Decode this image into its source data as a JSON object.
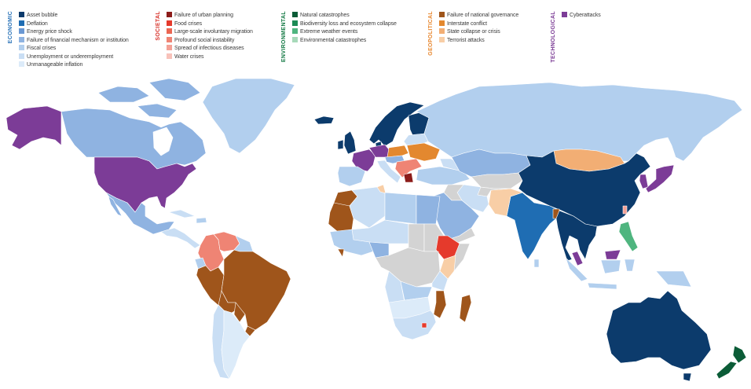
{
  "legend": [
    {
      "title": "ECONOMIC",
      "title_color": "#2a73b8",
      "items": [
        {
          "label": "Asset bubble",
          "color": "#0c3b6c"
        },
        {
          "label": "Deflation",
          "color": "#1f6db3"
        },
        {
          "label": "Energy price shock",
          "color": "#6a98d3"
        },
        {
          "label": "Failure of financial mechanism or institution",
          "color": "#8fb3e1"
        },
        {
          "label": "Fiscal crises",
          "color": "#b2cfee"
        },
        {
          "label": "Unemployment or underemployment",
          "color": "#c9def4"
        },
        {
          "label": "Unmanageable inflation",
          "color": "#dcebf9"
        }
      ]
    },
    {
      "title": "SOCIETAL",
      "title_color": "#d8322a",
      "items": [
        {
          "label": "Failure of urban planning",
          "color": "#8c1c1a"
        },
        {
          "label": "Food crises",
          "color": "#e53a2c"
        },
        {
          "label": "Large-scale involuntary migration",
          "color": "#eb6652"
        },
        {
          "label": "Profound social instability",
          "color": "#ef8474"
        },
        {
          "label": "Spread of infectious diseases",
          "color": "#f4a196"
        },
        {
          "label": "Water crises",
          "color": "#f8c2ba"
        }
      ]
    },
    {
      "title": "ENVIRONMENTAL",
      "title_color": "#157a45",
      "items": [
        {
          "label": "Natural catastrophes",
          "color": "#0b5c37"
        },
        {
          "label": "Biodiversity loss and ecosystem collapse",
          "color": "#1b8a55"
        },
        {
          "label": "Extreme weather events",
          "color": "#4fb57f"
        },
        {
          "label": "Environmental catastrophes",
          "color": "#a7d9b9"
        }
      ]
    },
    {
      "title": "GEOPOLITICAL",
      "title_color": "#e8872e",
      "items": [
        {
          "label": "Failure of national governance",
          "color": "#9f551b"
        },
        {
          "label": "Interstate conflict",
          "color": "#e3882f"
        },
        {
          "label": "State collapse or crisis",
          "color": "#f2ae74"
        },
        {
          "label": "Terrorist attacks",
          "color": "#f8cea6"
        }
      ]
    },
    {
      "title": "TECHNOLOGICAL",
      "title_color": "#7b3b95",
      "items": [
        {
          "label": "Cyberattacks",
          "color": "#7c3c97"
        }
      ]
    }
  ],
  "map": {
    "nodata_color": "#d3d3d3",
    "water_color": "#ffffff",
    "fills": {
      "greenland": [
        0,
        4
      ],
      "canada": [
        0,
        3
      ],
      "usa": [
        4,
        0
      ],
      "mexico": [
        0,
        3
      ],
      "central-america": [
        0,
        5
      ],
      "cuba": [
        0,
        5
      ],
      "hispaniola": [
        0,
        4
      ],
      "colombia": [
        1,
        3
      ],
      "venezuela": [
        1,
        3
      ],
      "guianas": [
        0,
        4
      ],
      "ecuador": [
        0,
        4
      ],
      "peru": [
        3,
        0
      ],
      "brazil": [
        3,
        0
      ],
      "bolivia": [
        3,
        0
      ],
      "paraguay": [
        3,
        0
      ],
      "uruguay": [
        3,
        0
      ],
      "chile": [
        0,
        5
      ],
      "argentina": [
        0,
        6
      ],
      "iceland": [
        0,
        0
      ],
      "uk": [
        0,
        0
      ],
      "ireland": [
        0,
        0
      ],
      "scandinavia": [
        0,
        0
      ],
      "finland": [
        0,
        0
      ],
      "denmark": [
        0,
        0
      ],
      "baltics-belarus": [
        0,
        5
      ],
      "france": [
        4,
        0
      ],
      "germany-benelux": [
        4,
        0
      ],
      "iberia": [
        0,
        4
      ],
      "italy": [
        0,
        5
      ],
      "poland": [
        3,
        1
      ],
      "central-europe": [
        0,
        3
      ],
      "ukraine": [
        3,
        1
      ],
      "balkans": [
        1,
        3
      ],
      "greece": [
        1,
        0
      ],
      "turkey": [
        0,
        4
      ],
      "caucasus": [
        0,
        5
      ],
      "russia": [
        0,
        4
      ],
      "kazakhstan": [
        0,
        3
      ],
      "central-asia": null,
      "mongolia": [
        3,
        2
      ],
      "china": [
        0,
        0
      ],
      "korea": [
        4,
        0
      ],
      "japan": [
        4,
        0
      ],
      "taiwan": [
        1,
        4
      ],
      "philippines": [
        2,
        2
      ],
      "india": [
        0,
        1
      ],
      "sri-lanka": [
        0,
        4
      ],
      "pakistan": [
        3,
        3
      ],
      "afghanistan": null,
      "iran": [
        0,
        5
      ],
      "iraq": null,
      "saudi-arabia": [
        0,
        3
      ],
      "yemen": null,
      "bangladesh": [
        3,
        0
      ],
      "southeast-asia": [
        0,
        0
      ],
      "malaysia": [
        4,
        0
      ],
      "indonesia": [
        0,
        4
      ],
      "papua-new-guinea": [
        0,
        4
      ],
      "australia": [
        0,
        0
      ],
      "new-zealand": [
        2,
        0
      ],
      "morocco": [
        3,
        0
      ],
      "mauritania": [
        3,
        0
      ],
      "algeria": [
        0,
        5
      ],
      "tunisia": [
        3,
        3
      ],
      "libya": [
        0,
        4
      ],
      "egypt": [
        0,
        3
      ],
      "sahel": [
        0,
        5
      ],
      "chad": null,
      "sudan": null,
      "ethiopia": [
        1,
        1
      ],
      "somalia": null,
      "kenya": [
        3,
        3
      ],
      "west-africa": [
        0,
        4
      ],
      "sierra-leone": [
        3,
        0
      ],
      "nigeria": [
        0,
        3
      ],
      "central-africa": null,
      "tanzania": [
        0,
        5
      ],
      "angola": [
        0,
        5
      ],
      "zambia": [
        0,
        4
      ],
      "mozambique": [
        3,
        0
      ],
      "namibia-botswana": [
        0,
        6
      ],
      "south-africa": [
        0,
        5
      ],
      "lesotho": [
        1,
        1
      ],
      "madagascar": [
        3,
        0
      ]
    }
  }
}
